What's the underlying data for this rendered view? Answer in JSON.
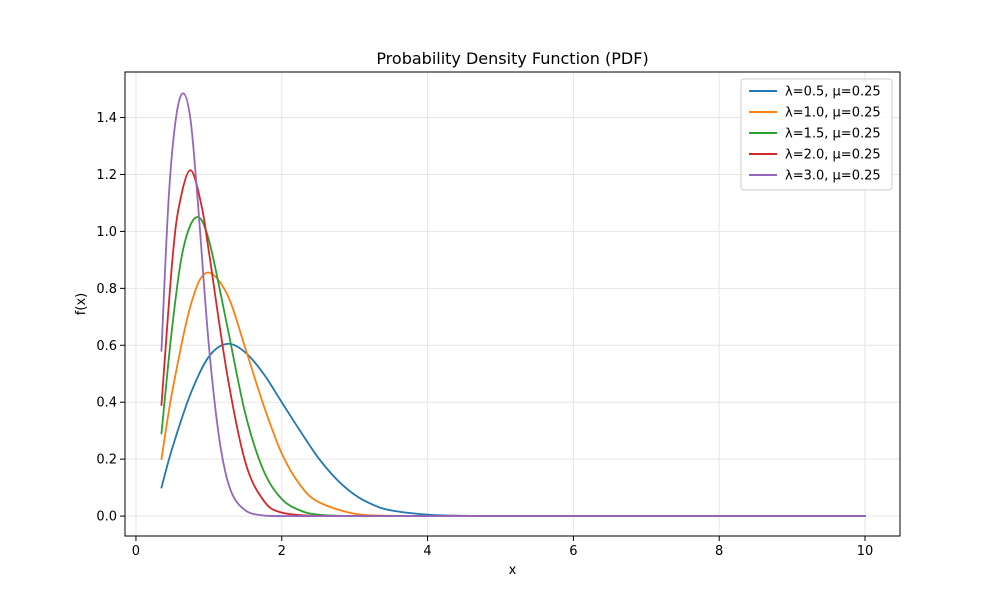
{
  "chart_data": {
    "type": "line",
    "title": "Probability Density Function (PDF)",
    "xlabel": "x",
    "ylabel": "f(x)",
    "xlim": [
      -0.15,
      10.48
    ],
    "ylim": [
      -0.07,
      1.56
    ],
    "xticks": [
      0,
      2,
      4,
      6,
      8,
      10
    ],
    "xtick_labels": [
      "0",
      "2",
      "4",
      "6",
      "8",
      "10"
    ],
    "yticks": [
      0.0,
      0.2,
      0.4,
      0.6,
      0.8,
      1.0,
      1.2,
      1.4
    ],
    "ytick_labels": [
      "0.0",
      "0.2",
      "0.4",
      "0.6",
      "0.8",
      "1.0",
      "1.2",
      "1.4"
    ],
    "grid": true,
    "legend_position": "top-right",
    "x_range": [
      0.35,
      10
    ],
    "series": [
      {
        "name": "λ=0.5, μ=0.25",
        "color": "#1f77b4",
        "x": [
          0.35,
          0.5,
          0.75,
          1.0,
          1.25,
          1.5,
          1.75,
          2.0,
          2.25,
          2.5,
          2.75,
          3.0,
          3.25,
          3.5,
          4.0,
          4.5,
          5.0,
          6.0,
          8.0,
          10.0
        ],
        "y": [
          0.1,
          0.24,
          0.43,
          0.56,
          0.605,
          0.575,
          0.5,
          0.4,
          0.3,
          0.205,
          0.13,
          0.075,
          0.04,
          0.02,
          0.005,
          0.001,
          0.0,
          0.0,
          0.0,
          0.0
        ]
      },
      {
        "name": "λ=1.0, μ=0.25",
        "color": "#ff7f0e",
        "x": [
          0.35,
          0.5,
          0.75,
          0.97,
          1.25,
          1.5,
          1.75,
          2.0,
          2.25,
          2.5,
          3.0,
          3.5,
          4.0,
          5.0,
          10.0
        ],
        "y": [
          0.2,
          0.44,
          0.74,
          0.855,
          0.78,
          0.59,
          0.39,
          0.22,
          0.11,
          0.05,
          0.008,
          0.001,
          0.0,
          0.0,
          0.0
        ]
      },
      {
        "name": "λ=1.5, μ=0.25",
        "color": "#2ca02c",
        "x": [
          0.35,
          0.5,
          0.65,
          0.83,
          1.0,
          1.25,
          1.5,
          1.75,
          2.0,
          2.25,
          2.5,
          3.0,
          4.0,
          10.0
        ],
        "y": [
          0.29,
          0.67,
          0.94,
          1.05,
          0.97,
          0.67,
          0.36,
          0.16,
          0.06,
          0.02,
          0.005,
          0.0,
          0.0,
          0.0
        ]
      },
      {
        "name": "λ=2.0, μ=0.25",
        "color": "#d62728",
        "x": [
          0.35,
          0.5,
          0.6,
          0.75,
          0.9,
          1.0,
          1.25,
          1.5,
          1.75,
          2.0,
          2.5,
          3.0,
          10.0
        ],
        "y": [
          0.39,
          0.9,
          1.1,
          1.215,
          1.09,
          0.93,
          0.5,
          0.19,
          0.055,
          0.012,
          0.0,
          0.0,
          0.0
        ]
      },
      {
        "name": "λ=3.0, μ=0.25",
        "color": "#9467bd",
        "x": [
          0.35,
          0.45,
          0.55,
          0.65,
          0.75,
          0.85,
          1.0,
          1.15,
          1.3,
          1.5,
          1.75,
          2.0,
          3.0,
          10.0
        ],
        "y": [
          0.58,
          1.12,
          1.4,
          1.485,
          1.39,
          1.1,
          0.6,
          0.26,
          0.09,
          0.02,
          0.002,
          0.0,
          0.0,
          0.0
        ]
      }
    ]
  }
}
